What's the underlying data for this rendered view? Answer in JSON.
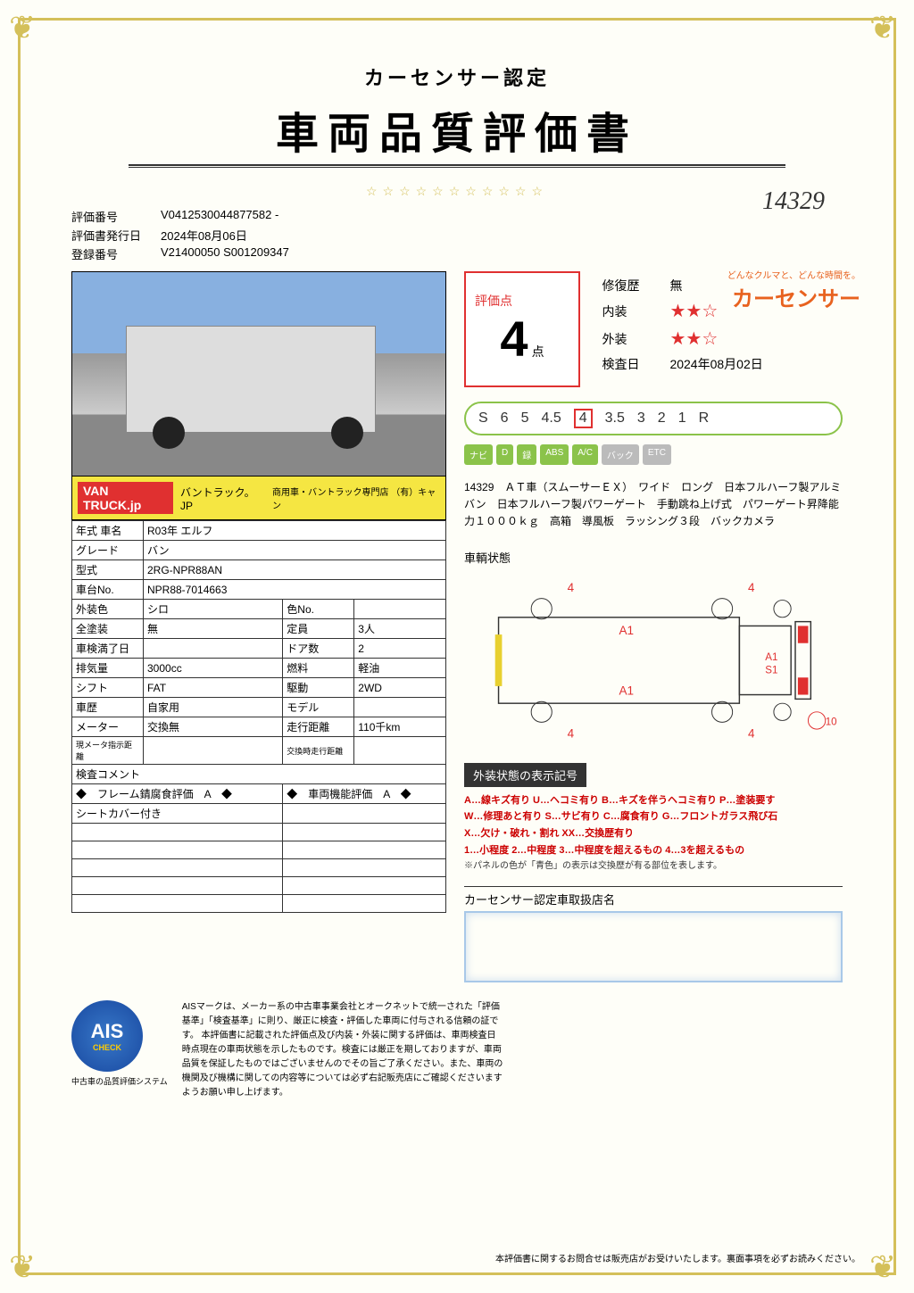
{
  "header": {
    "subtitle": "カーセンサー認定",
    "title": "車両品質評価書",
    "handwritten": "14329",
    "stars": "☆☆☆☆☆☆☆☆☆☆☆"
  },
  "brand": {
    "tagline": "どんなクルマと、どんな時間を。",
    "name": "カーセンサー"
  },
  "meta": {
    "eval_no_label": "評価番号",
    "eval_no": "V0412530044877582 -",
    "issue_label": "評価書発行日",
    "issue_date": "2024年08月06日",
    "reg_label": "登録番号",
    "reg_no": "V21400050 S001209347"
  },
  "photo_caption": {
    "logo": "VAN TRUCK.jp",
    "text1": "バントラック。JP",
    "text2": "商用車・バントラック専門店 （有）キャン"
  },
  "spec": {
    "r1a": "年式 車名",
    "r1b": "R03年 エルフ",
    "r2a": "グレード",
    "r2b": "バン",
    "r3a": "型式",
    "r3b": "2RG-NPR88AN",
    "r4a": "車台No.",
    "r4b": "NPR88-7014663",
    "r5a": "外装色",
    "r5b": "シロ",
    "r5c": "色No.",
    "r5d": "",
    "r6a": "全塗装",
    "r6b": "無",
    "r6c": "定員",
    "r6d": "3人",
    "r7a": "車検満了日",
    "r7b": "",
    "r7c": "ドア数",
    "r7d": "2",
    "r8a": "排気量",
    "r8b": "3000cc",
    "r8c": "燃料",
    "r8d": "軽油",
    "r9a": "シフト",
    "r9b": "FAT",
    "r9c": "駆動",
    "r9d": "2WD",
    "r10a": "車歴",
    "r10b": "自家用",
    "r10c": "モデル",
    "r10d": "",
    "r11a": "メーター",
    "r11b": "交換無",
    "r11c": "走行距離",
    "r11d": "110千km",
    "r12a": "現メータ指示距離",
    "r12b": "",
    "r12c": "交換時走行距離",
    "r12d": "",
    "insp_label": "検査コメント",
    "frame": "◆　フレーム錆腐食評価　A　◆",
    "func": "◆　車両機能評価　A　◆",
    "note1": "シートカバー付き"
  },
  "score": {
    "label": "評価点",
    "value": "4",
    "unit": "点"
  },
  "ratings": {
    "repair_label": "修復歴",
    "repair_val": "無",
    "interior_label": "内装",
    "interior_stars": "★★☆",
    "exterior_label": "外装",
    "exterior_stars": "★★☆",
    "inspect_label": "検査日",
    "inspect_date": "2024年08月02日"
  },
  "scale": [
    "S",
    "6",
    "5",
    "4.5",
    "4",
    "3.5",
    "3",
    "2",
    "1",
    "R"
  ],
  "scale_hit": "4",
  "badges": [
    "ナビ",
    "D",
    "録",
    "ABS",
    "A/C",
    "バック",
    "ETC"
  ],
  "description": "14329　ＡＴ車（スムーサーＥＸ）　ワイド　ロング　日本フルハーフ製アルミバン　日本フルハーフ製パワーゲート　手動跳ね上げ式　パワーゲート昇降能力１０００ｋｇ　高箱　導風板　ラッシング３段　バックカメラ",
  "diagram": {
    "label": "車輌状態",
    "marks": {
      "m1": "4",
      "m2": "4",
      "m3": "A1",
      "m4": "A1",
      "m5": "S1",
      "m6": "A1",
      "m7": "4",
      "m8": "4",
      "m9": "10"
    },
    "colors": {
      "red": "#e03030",
      "yellow": "#e8d030",
      "outline": "#333"
    }
  },
  "legend": {
    "title": "外装状態の表示記号",
    "line1_a": "A…線キズ有り ",
    "line1_u": "U…ヘコミ有り ",
    "line1_b": "B…キズを伴うヘコミ有り ",
    "line1_p": "P…塗装要す",
    "line2_w": "W…修理あと有り ",
    "line2_s": "S…サビ有り ",
    "line2_c": "C…腐食有り ",
    "line2_g": "G…フロントガラス飛び石",
    "line3_x": "X…欠け・破れ・割れ ",
    "line3_xx": "XX…交換歴有り",
    "line4_1": "1…小程度 ",
    "line4_2": "2…中程度 ",
    "line4_3": "3…中程度を超えるもの ",
    "line4_4": "4…3を超えるもの",
    "note": "※パネルの色が「青色」の表示は交換歴が有る部位を表します。"
  },
  "dealer_label": "カーセンサー認定車取扱店名",
  "ais": {
    "name": "AIS",
    "sub": "CHECK",
    "caption": "中古車の品質評価システム"
  },
  "footer_text": "AISマークは、メーカー系の中古車事業会社とオークネットで統一された「評価基準」「検査基準」に則り、厳正に検査・評価した車両に付与される信頼の証です。\n本評価書に記載された評価点及び内装・外装に関する評価は、車両検査日時点現在の車両状態を示したものです。検査には厳正を期しておりますが、車両品質を保証したものではございませんのでその旨ご了承ください。また、車両の機関及び機構に関しての内容等については必ず右記販売店にご確認くださいますようお願い申し上げます。",
  "footnote": "本評価書に関するお問合せは販売店がお受けいたします。裏面事項を必ずお読みください。"
}
